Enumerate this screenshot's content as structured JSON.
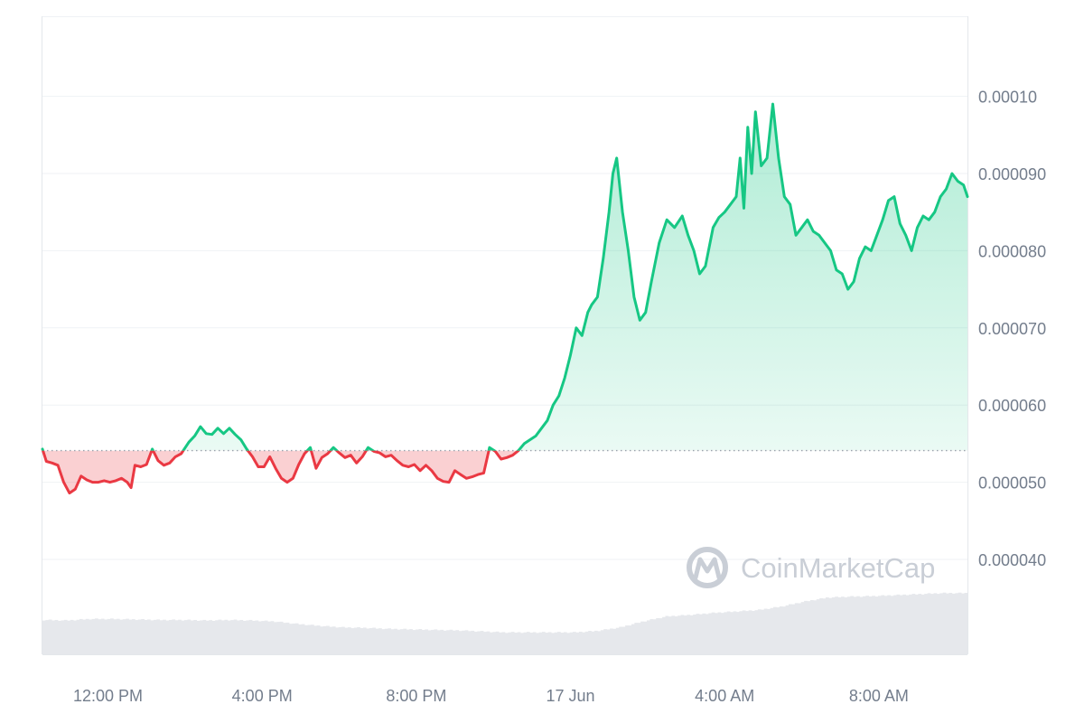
{
  "chart_data": {
    "type": "area",
    "x_ticks": [
      "12:00 PM",
      "4:00 PM",
      "8:00 PM",
      "17 Jun",
      "4:00 AM",
      "8:00 AM"
    ],
    "y_ticks": [
      "0.000040",
      "0.000050",
      "0.000060",
      "0.000070",
      "0.000080",
      "0.000090",
      "0.00010"
    ],
    "y_tick_values": [
      4e-05,
      5e-05,
      6e-05,
      7e-05,
      8e-05,
      9e-05,
      0.0001
    ],
    "ylim": [
      3.05e-05,
      0.000111
    ],
    "baseline": 5.41e-05,
    "x_unit": "hours after the 12:00 PM label",
    "xlim": [
      -1.7,
      22.3
    ],
    "x_tick_values": [
      0,
      4,
      8,
      12,
      16,
      20
    ],
    "price_series": {
      "name": "Price",
      "points": [
        [
          -1.7,
          5.43e-05
        ],
        [
          -1.6,
          5.27e-05
        ],
        [
          -1.45,
          5.25e-05
        ],
        [
          -1.3,
          5.22e-05
        ],
        [
          -1.15,
          5e-05
        ],
        [
          -1.0,
          4.86e-05
        ],
        [
          -0.85,
          4.91e-05
        ],
        [
          -0.7,
          5.08e-05
        ],
        [
          -0.55,
          5.03e-05
        ],
        [
          -0.4,
          5e-05
        ],
        [
          -0.25,
          5e-05
        ],
        [
          -0.1,
          5.02e-05
        ],
        [
          0.05,
          5e-05
        ],
        [
          0.2,
          5.02e-05
        ],
        [
          0.35,
          5.05e-05
        ],
        [
          0.5,
          5e-05
        ],
        [
          0.6,
          4.93e-05
        ],
        [
          0.7,
          5.22e-05
        ],
        [
          0.85,
          5.2e-05
        ],
        [
          1.0,
          5.23e-05
        ],
        [
          1.15,
          5.43e-05
        ],
        [
          1.3,
          5.28e-05
        ],
        [
          1.45,
          5.22e-05
        ],
        [
          1.6,
          5.25e-05
        ],
        [
          1.75,
          5.33e-05
        ],
        [
          1.9,
          5.37e-05
        ],
        [
          2.1,
          5.52e-05
        ],
        [
          2.25,
          5.6e-05
        ],
        [
          2.4,
          5.72e-05
        ],
        [
          2.55,
          5.63e-05
        ],
        [
          2.7,
          5.62e-05
        ],
        [
          2.85,
          5.7e-05
        ],
        [
          3.0,
          5.63e-05
        ],
        [
          3.15,
          5.7e-05
        ],
        [
          3.3,
          5.62e-05
        ],
        [
          3.45,
          5.55e-05
        ],
        [
          3.6,
          5.43e-05
        ],
        [
          3.75,
          5.33e-05
        ],
        [
          3.9,
          5.2e-05
        ],
        [
          4.05,
          5.2e-05
        ],
        [
          4.2,
          5.33e-05
        ],
        [
          4.35,
          5.18e-05
        ],
        [
          4.5,
          5.05e-05
        ],
        [
          4.65,
          5e-05
        ],
        [
          4.8,
          5.05e-05
        ],
        [
          4.95,
          5.23e-05
        ],
        [
          5.1,
          5.37e-05
        ],
        [
          5.25,
          5.45e-05
        ],
        [
          5.4,
          5.18e-05
        ],
        [
          5.55,
          5.32e-05
        ],
        [
          5.7,
          5.37e-05
        ],
        [
          5.85,
          5.45e-05
        ],
        [
          6.0,
          5.38e-05
        ],
        [
          6.15,
          5.32e-05
        ],
        [
          6.3,
          5.35e-05
        ],
        [
          6.45,
          5.25e-05
        ],
        [
          6.6,
          5.33e-05
        ],
        [
          6.75,
          5.45e-05
        ],
        [
          6.9,
          5.4e-05
        ],
        [
          7.05,
          5.38e-05
        ],
        [
          7.2,
          5.33e-05
        ],
        [
          7.35,
          5.35e-05
        ],
        [
          7.5,
          5.28e-05
        ],
        [
          7.65,
          5.22e-05
        ],
        [
          7.8,
          5.2e-05
        ],
        [
          7.95,
          5.23e-05
        ],
        [
          8.1,
          5.15e-05
        ],
        [
          8.25,
          5.22e-05
        ],
        [
          8.4,
          5.15e-05
        ],
        [
          8.55,
          5.05e-05
        ],
        [
          8.7,
          5.01e-05
        ],
        [
          8.85,
          5e-05
        ],
        [
          9.0,
          5.15e-05
        ],
        [
          9.15,
          5.1e-05
        ],
        [
          9.3,
          5.05e-05
        ],
        [
          9.45,
          5.07e-05
        ],
        [
          9.6,
          5.1e-05
        ],
        [
          9.75,
          5.12e-05
        ],
        [
          9.9,
          5.45e-05
        ],
        [
          10.05,
          5.4e-05
        ],
        [
          10.2,
          5.3e-05
        ],
        [
          10.35,
          5.32e-05
        ],
        [
          10.5,
          5.35e-05
        ],
        [
          10.65,
          5.41e-05
        ],
        [
          10.8,
          5.5e-05
        ],
        [
          10.95,
          5.55e-05
        ],
        [
          11.1,
          5.6e-05
        ],
        [
          11.25,
          5.7e-05
        ],
        [
          11.4,
          5.8e-05
        ],
        [
          11.55,
          6e-05
        ],
        [
          11.7,
          6.12e-05
        ],
        [
          11.85,
          6.35e-05
        ],
        [
          12.0,
          6.65e-05
        ],
        [
          12.15,
          7e-05
        ],
        [
          12.3,
          6.9e-05
        ],
        [
          12.45,
          7.2e-05
        ],
        [
          12.55,
          7.3e-05
        ],
        [
          12.7,
          7.4e-05
        ],
        [
          12.85,
          7.9e-05
        ],
        [
          13.0,
          8.5e-05
        ],
        [
          13.1,
          9e-05
        ],
        [
          13.2,
          9.2e-05
        ],
        [
          13.35,
          8.5e-05
        ],
        [
          13.5,
          8e-05
        ],
        [
          13.65,
          7.4e-05
        ],
        [
          13.8,
          7.1e-05
        ],
        [
          13.95,
          7.2e-05
        ],
        [
          14.1,
          7.6e-05
        ],
        [
          14.3,
          8.1e-05
        ],
        [
          14.5,
          8.4e-05
        ],
        [
          14.7,
          8.3e-05
        ],
        [
          14.9,
          8.45e-05
        ],
        [
          15.05,
          8.2e-05
        ],
        [
          15.2,
          8e-05
        ],
        [
          15.35,
          7.7e-05
        ],
        [
          15.5,
          7.8e-05
        ],
        [
          15.7,
          8.3e-05
        ],
        [
          15.85,
          8.43e-05
        ],
        [
          16.0,
          8.5e-05
        ],
        [
          16.15,
          8.6e-05
        ],
        [
          16.3,
          8.7e-05
        ],
        [
          16.4,
          9.2e-05
        ],
        [
          16.5,
          8.55e-05
        ],
        [
          16.6,
          9.6e-05
        ],
        [
          16.7,
          9e-05
        ],
        [
          16.8,
          9.8e-05
        ],
        [
          16.95,
          9.1e-05
        ],
        [
          17.1,
          9.2e-05
        ],
        [
          17.25,
          9.9e-05
        ],
        [
          17.4,
          9.2e-05
        ],
        [
          17.55,
          8.7e-05
        ],
        [
          17.7,
          8.6e-05
        ],
        [
          17.85,
          8.2e-05
        ],
        [
          18.0,
          8.3e-05
        ],
        [
          18.15,
          8.4e-05
        ],
        [
          18.3,
          8.25e-05
        ],
        [
          18.45,
          8.2e-05
        ],
        [
          18.6,
          8.1e-05
        ],
        [
          18.75,
          8e-05
        ],
        [
          18.9,
          7.75e-05
        ],
        [
          19.05,
          7.7e-05
        ],
        [
          19.2,
          7.5e-05
        ],
        [
          19.35,
          7.6e-05
        ],
        [
          19.5,
          7.9e-05
        ],
        [
          19.65,
          8.05e-05
        ],
        [
          19.8,
          8e-05
        ],
        [
          19.95,
          8.2e-05
        ],
        [
          20.1,
          8.4e-05
        ],
        [
          20.25,
          8.65e-05
        ],
        [
          20.4,
          8.7e-05
        ],
        [
          20.55,
          8.35e-05
        ],
        [
          20.7,
          8.2e-05
        ],
        [
          20.85,
          8e-05
        ],
        [
          21.0,
          8.3e-05
        ],
        [
          21.15,
          8.45e-05
        ],
        [
          21.3,
          8.4e-05
        ],
        [
          21.45,
          8.5e-05
        ],
        [
          21.6,
          8.7e-05
        ],
        [
          21.75,
          8.8e-05
        ],
        [
          21.9,
          9e-05
        ],
        [
          22.05,
          8.9e-05
        ],
        [
          22.2,
          8.85e-05
        ],
        [
          22.3,
          8.7e-05
        ]
      ]
    },
    "volume_series": {
      "name": "Volume",
      "values": [
        0.68,
        0.67,
        0.7,
        0.7,
        0.69,
        0.68,
        0.68,
        0.67,
        0.68,
        0.67,
        0.65,
        0.6,
        0.56,
        0.53,
        0.52,
        0.5,
        0.49,
        0.48,
        0.47,
        0.45,
        0.43,
        0.43,
        0.43,
        0.43,
        0.46,
        0.53,
        0.65,
        0.75,
        0.78,
        0.82,
        0.85,
        0.88,
        0.95,
        1.05,
        1.13,
        1.15,
        1.16,
        1.18,
        1.2,
        1.22,
        1.22
      ]
    },
    "colors": {
      "up": "#16c784",
      "down": "#ea3943",
      "up_fill": "#16c784",
      "down_fill": "#ea3943",
      "volume": "#e6e8ec",
      "grid": "#eff2f5",
      "baseline": "#9aa2ad"
    },
    "grid": true,
    "watermark": "CoinMarketCap"
  }
}
